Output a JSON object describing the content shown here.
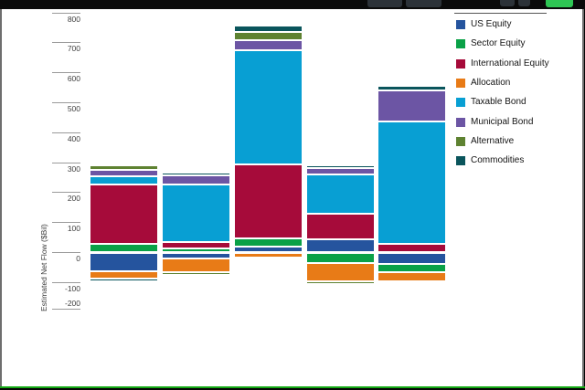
{
  "window": {
    "chrome_accent_green": "#2ec654",
    "bottom_edge_green": "#15a915"
  },
  "chart": {
    "ylabel": "Estimated Net Flow ($Bil)",
    "y_ticks": [
      "800",
      "700",
      "600",
      "500",
      "400",
      "300",
      "200",
      "100",
      "0",
      "-100",
      "-200"
    ]
  },
  "chart_data": {
    "type": "bar",
    "stacked": true,
    "title": "",
    "xlabel": "",
    "ylabel": "Estimated Net Flow ($Bil)",
    "ylim": [
      -200,
      800
    ],
    "grid": false,
    "legend_position": "top-right",
    "categories": [
      "",
      "",
      "",
      "",
      ""
    ],
    "series": [
      {
        "name": "US Equity",
        "color": "#25549E",
        "values": [
          -63,
          -19,
          21,
          44,
          -38
        ]
      },
      {
        "name": "Sector Equity",
        "color": "#0AA147",
        "values": [
          28,
          14,
          26,
          -35,
          -27
        ]
      },
      {
        "name": "International Equity",
        "color": "#A60B3A",
        "values": [
          199,
          21,
          247,
          87,
          29
        ]
      },
      {
        "name": "Allocation",
        "color": "#E87B17",
        "values": [
          -25,
          -47,
          -18,
          -61,
          -30
        ]
      },
      {
        "name": "Taxable Bond",
        "color": "#089FD3",
        "values": [
          28,
          193,
          381,
          131,
          410
        ]
      },
      {
        "name": "Municipal Bond",
        "color": "#6C55A4",
        "values": [
          22,
          30,
          33,
          20,
          103
        ]
      },
      {
        "name": "Alternative",
        "color": "#5E8231",
        "values": [
          14,
          -8,
          28,
          -10,
          -8
        ]
      },
      {
        "name": "Commodities",
        "color": "#0A555C",
        "values": [
          -9,
          10,
          23,
          9,
          15
        ]
      }
    ]
  }
}
